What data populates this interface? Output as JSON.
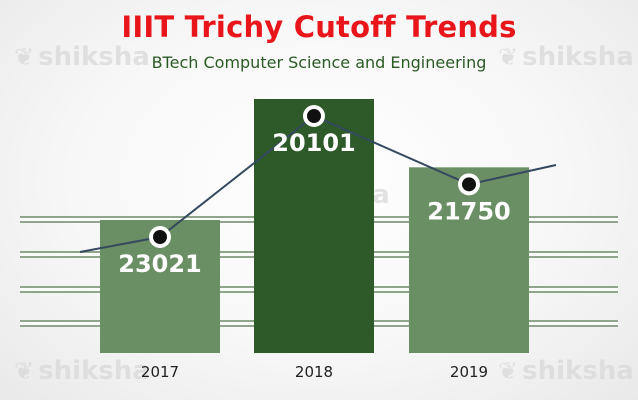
{
  "watermark_text": "shiksha",
  "watermark_icon": "shiksha-logo-icon",
  "chart_data": {
    "type": "bar",
    "title": "IIIT Trichy Cutoff Trends",
    "subtitle": "BTech Computer Science and Engineering",
    "xlabel": "",
    "ylabel": "",
    "categories": [
      "2017",
      "2018",
      "2019"
    ],
    "values": [
      23021,
      20101,
      21750
    ],
    "overlay_line": {
      "type": "line",
      "values": [
        23021,
        20101,
        21750
      ]
    },
    "bar_colors": [
      "#6b8f64",
      "#2e5a2a",
      "#6b8f64"
    ],
    "line_color": "#34495e",
    "title_color": "#e8161b",
    "subtitle_color": "#2a5a24",
    "value_label_color": "#ffffff"
  }
}
